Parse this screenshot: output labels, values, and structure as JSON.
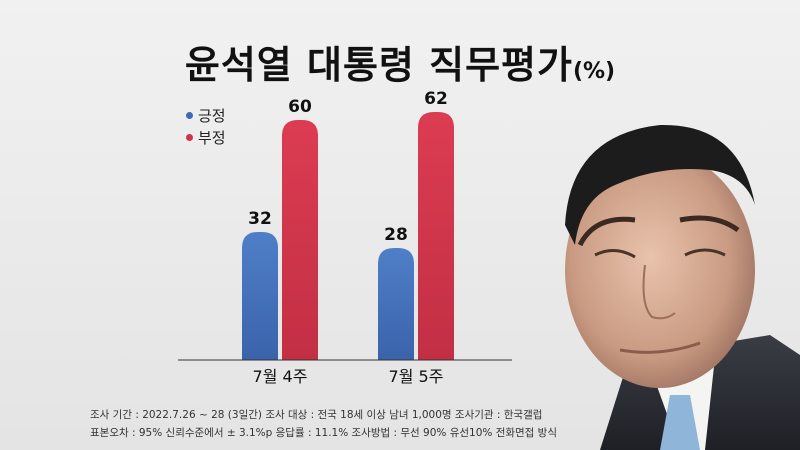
{
  "title": {
    "main": "윤석열 대통령 직무평가",
    "unit": "(%)"
  },
  "legend": [
    {
      "label": "긍정",
      "color": "#3d6bb8"
    },
    {
      "label": "부정",
      "color": "#d0344a"
    }
  ],
  "chart_data": {
    "type": "bar",
    "title": "윤석열 대통령 직무평가(%)",
    "categories": [
      "7월 4주",
      "7월 5주"
    ],
    "series": [
      {
        "name": "긍정",
        "values": [
          32,
          28
        ],
        "color": "#3d6bb8"
      },
      {
        "name": "부정",
        "values": [
          60,
          62
        ],
        "color": "#d0344a"
      }
    ],
    "xlabel": "",
    "ylabel": "",
    "ylim": [
      0,
      70
    ],
    "grid": false,
    "legend_position": "top-left"
  },
  "notes": {
    "line1": "조사 기간 : 2022.7.26 ~ 28 (3일간)   조사 대상 : 전국 18세 이상 남녀 1,000명   조사기관 : 한국갤럽",
    "line2": "표본오차 : 95% 신뢰수준에서 ± 3.1%p   응답률 : 11.1%   조사방법 : 무선 90% 유선10% 전화면접 방식"
  }
}
